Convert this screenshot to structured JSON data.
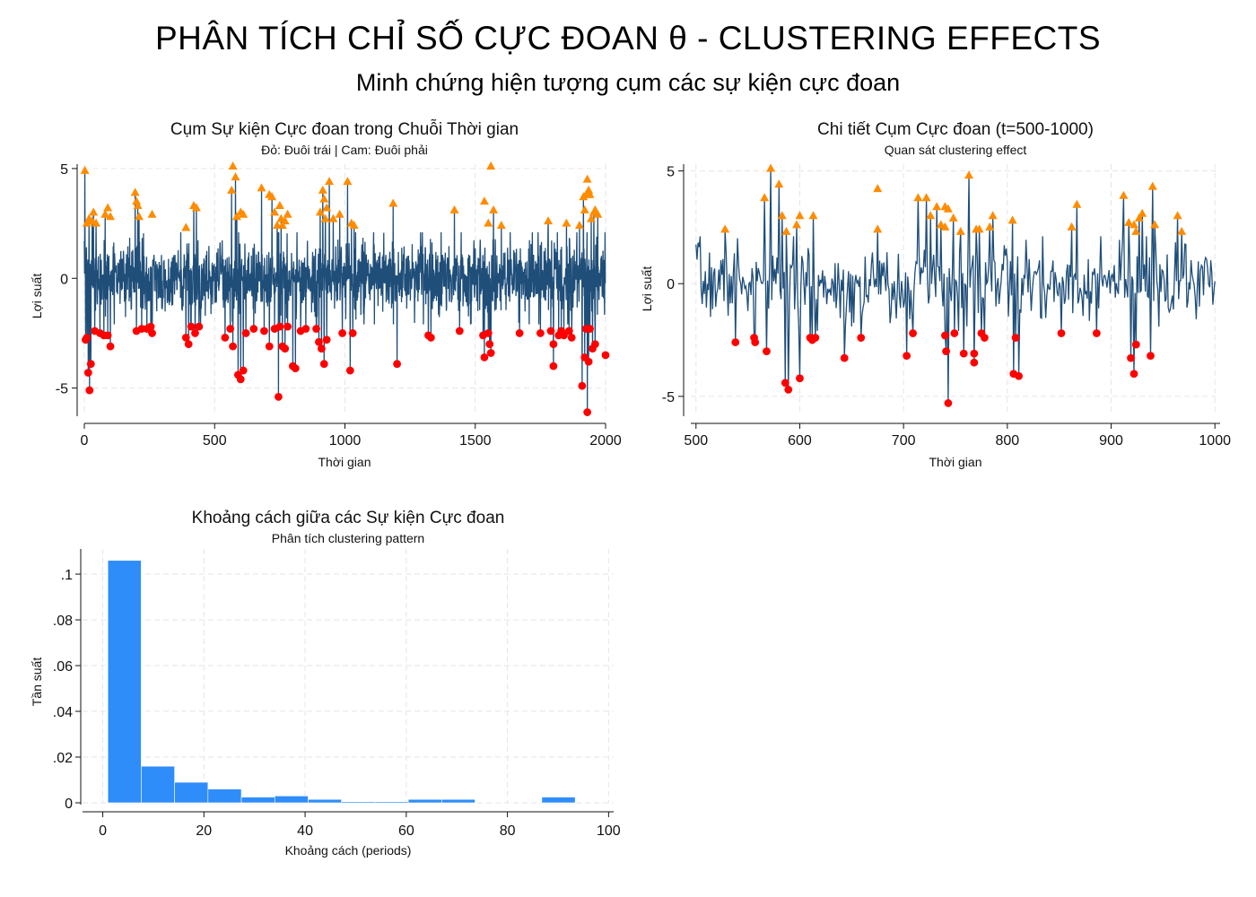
{
  "title": "PHÂN TÍCH CHỈ SỐ CỰC ĐOAN θ - CLUSTERING EFFECTS",
  "subtitle": "Minh chứng hiện tượng cụm các sự kiện cực đoan",
  "colors": {
    "line": "#1f4e79",
    "right_tail": "#ff8c00",
    "left_tail": "#ff0000",
    "bar": "#2f8dfa"
  },
  "chart_data": [
    {
      "id": "ts-full",
      "type": "line",
      "title": "Cụm Sự kiện Cực đoan trong Chuỗi Thời gian",
      "subtitle": "Đỏ: Đuôi trái | Cam: Đuôi phải",
      "xlabel": "Thời gian",
      "ylabel": "Lợi suất",
      "xlim": [
        0,
        2000
      ],
      "ylim": [
        -6.2,
        5.2
      ],
      "xticks": [
        0,
        500,
        1000,
        1500,
        2000
      ],
      "yticks": [
        -5,
        0,
        5
      ],
      "ytick_labels": [
        "-5",
        "0",
        "5"
      ],
      "grid": true,
      "series": [
        {
          "name": "",
          "marker": "line",
          "x_start": 0,
          "x_step": 1,
          "n": 2000,
          "note_values": "Return path with extreme events: exact per-point values not legible; line rendered from approx. reconstructed path"
        },
        {
          "name": "Cam: Đuôi phải",
          "marker": "triangle",
          "points": [
            [
              2,
              4.9
            ],
            [
              10,
              2.5
            ],
            [
              18,
              2.7
            ],
            [
              30,
              2.6
            ],
            [
              35,
              3.0
            ],
            [
              45,
              2.5
            ],
            [
              80,
              2.9
            ],
            [
              90,
              3.2
            ],
            [
              100,
              2.8
            ],
            [
              195,
              3.9
            ],
            [
              200,
              3.5
            ],
            [
              205,
              3.3
            ],
            [
              210,
              2.8
            ],
            [
              260,
              2.9
            ],
            [
              390,
              2.3
            ],
            [
              420,
              3.3
            ],
            [
              430,
              3.2
            ],
            [
              565,
              4.0
            ],
            [
              570,
              5.1
            ],
            [
              580,
              4.6
            ],
            [
              585,
              2.8
            ],
            [
              600,
              3.0
            ],
            [
              610,
              2.9
            ],
            [
              680,
              4.1
            ],
            [
              710,
              3.8
            ],
            [
              720,
              3.7
            ],
            [
              730,
              3.0
            ],
            [
              740,
              2.4
            ],
            [
              750,
              3.3
            ],
            [
              755,
              2.7
            ],
            [
              760,
              2.4
            ],
            [
              770,
              2.6
            ],
            [
              780,
              2.9
            ],
            [
              905,
              3.0
            ],
            [
              915,
              4.0
            ],
            [
              920,
              3.6
            ],
            [
              925,
              2.7
            ],
            [
              930,
              3.2
            ],
            [
              940,
              4.4
            ],
            [
              955,
              2.7
            ],
            [
              980,
              2.9
            ],
            [
              1010,
              4.4
            ],
            [
              1025,
              2.5
            ],
            [
              1035,
              2.4
            ],
            [
              1185,
              3.4
            ],
            [
              1420,
              3.1
            ],
            [
              1535,
              3.5
            ],
            [
              1550,
              2.5
            ],
            [
              1560,
              5.1
            ],
            [
              1570,
              3.1
            ],
            [
              1600,
              2.4
            ],
            [
              1780,
              2.6
            ],
            [
              1850,
              2.5
            ],
            [
              1900,
              2.4
            ],
            [
              1915,
              3.7
            ],
            [
              1920,
              3.1
            ],
            [
              1925,
              3.8
            ],
            [
              1930,
              4.5
            ],
            [
              1935,
              4.0
            ],
            [
              1940,
              3.8
            ],
            [
              1945,
              2.7
            ],
            [
              1955,
              3.0
            ],
            [
              1960,
              3.1
            ],
            [
              1970,
              2.9
            ]
          ]
        },
        {
          "name": "Đỏ: Đuôi trái",
          "marker": "circle",
          "points": [
            [
              5,
              -2.8
            ],
            [
              10,
              -2.7
            ],
            [
              15,
              -4.3
            ],
            [
              20,
              -5.1
            ],
            [
              25,
              -3.9
            ],
            [
              40,
              -2.4
            ],
            [
              60,
              -2.5
            ],
            [
              75,
              -2.6
            ],
            [
              90,
              -2.6
            ],
            [
              100,
              -3.1
            ],
            [
              200,
              -2.4
            ],
            [
              220,
              -2.3
            ],
            [
              240,
              -2.3
            ],
            [
              255,
              -2.2
            ],
            [
              260,
              -2.5
            ],
            [
              390,
              -2.7
            ],
            [
              400,
              -3.0
            ],
            [
              410,
              -2.2
            ],
            [
              425,
              -2.5
            ],
            [
              440,
              -2.2
            ],
            [
              540,
              -2.7
            ],
            [
              560,
              -2.3
            ],
            [
              570,
              -3.1
            ],
            [
              590,
              -4.4
            ],
            [
              600,
              -4.6
            ],
            [
              610,
              -4.2
            ],
            [
              620,
              -2.5
            ],
            [
              650,
              -2.3
            ],
            [
              690,
              -2.4
            ],
            [
              710,
              -3.1
            ],
            [
              730,
              -2.3
            ],
            [
              745,
              -5.4
            ],
            [
              750,
              -2.2
            ],
            [
              760,
              -3.1
            ],
            [
              770,
              -3.2
            ],
            [
              780,
              -2.2
            ],
            [
              800,
              -4.0
            ],
            [
              810,
              -4.1
            ],
            [
              830,
              -2.4
            ],
            [
              850,
              -2.3
            ],
            [
              890,
              -2.3
            ],
            [
              900,
              -2.9
            ],
            [
              910,
              -3.2
            ],
            [
              920,
              -3.9
            ],
            [
              930,
              -2.8
            ],
            [
              990,
              -2.5
            ],
            [
              1020,
              -4.2
            ],
            [
              1030,
              -2.5
            ],
            [
              1200,
              -3.9
            ],
            [
              1320,
              -2.6
            ],
            [
              1330,
              -2.7
            ],
            [
              1440,
              -2.4
            ],
            [
              1530,
              -2.6
            ],
            [
              1535,
              -3.6
            ],
            [
              1550,
              -2.5
            ],
            [
              1555,
              -3.0
            ],
            [
              1560,
              -3.4
            ],
            [
              1670,
              -2.5
            ],
            [
              1750,
              -2.5
            ],
            [
              1790,
              -2.4
            ],
            [
              1800,
              -3.0
            ],
            [
              1800,
              -4.0
            ],
            [
              1820,
              -2.6
            ],
            [
              1830,
              -2.4
            ],
            [
              1840,
              -2.6
            ],
            [
              1860,
              -2.4
            ],
            [
              1870,
              -2.7
            ],
            [
              1910,
              -4.9
            ],
            [
              1920,
              -3.6
            ],
            [
              1925,
              -2.3
            ],
            [
              1930,
              -6.1
            ],
            [
              1935,
              -3.8
            ],
            [
              1940,
              -2.3
            ],
            [
              1950,
              -3.2
            ],
            [
              1960,
              -3.0
            ],
            [
              2000,
              -3.5
            ]
          ]
        }
      ]
    },
    {
      "id": "ts-zoom",
      "type": "line",
      "title": "Chi tiết Cụm Cực đoan (t=500-1000)",
      "subtitle": "Quan sát clustering effect",
      "xlabel": "Thời gian",
      "ylabel": "Lợi suất",
      "xlim": [
        495,
        1005
      ],
      "ylim": [
        -5.8,
        5.3
      ],
      "xticks": [
        500,
        600,
        700,
        800,
        900,
        1000
      ],
      "yticks": [
        -5,
        0,
        5
      ],
      "ytick_labels": [
        "-5",
        "0",
        "5"
      ],
      "grid": true,
      "series": [
        {
          "name": "",
          "marker": "line",
          "x_start": 500,
          "x_step": 1,
          "n": 501,
          "note_values": "Zoomed segment of the same path; per-point values not legible"
        },
        {
          "name": "Cam: Đuôi phải",
          "marker": "triangle",
          "points": [
            [
              528,
              2.4
            ],
            [
              566,
              3.8
            ],
            [
              572,
              5.1
            ],
            [
              580,
              4.4
            ],
            [
              583,
              3.0
            ],
            [
              587,
              2.3
            ],
            [
              597,
              2.6
            ],
            [
              600,
              3.0
            ],
            [
              613,
              3.0
            ],
            [
              675,
              4.2
            ],
            [
              675,
              2.4
            ],
            [
              714,
              3.8
            ],
            [
              722,
              3.8
            ],
            [
              726,
              3.0
            ],
            [
              732,
              3.4
            ],
            [
              736,
              2.6
            ],
            [
              740,
              3.4
            ],
            [
              740,
              2.5
            ],
            [
              743,
              3.3
            ],
            [
              748,
              2.9
            ],
            [
              755,
              2.3
            ],
            [
              763,
              4.8
            ],
            [
              770,
              2.4
            ],
            [
              773,
              2.4
            ],
            [
              783,
              2.5
            ],
            [
              786,
              3.0
            ],
            [
              805,
              2.8
            ],
            [
              862,
              2.5
            ],
            [
              867,
              3.5
            ],
            [
              912,
              3.9
            ],
            [
              917,
              2.7
            ],
            [
              922,
              2.6
            ],
            [
              924,
              2.3
            ],
            [
              927,
              2.9
            ],
            [
              930,
              3.1
            ],
            [
              940,
              4.3
            ],
            [
              942,
              2.6
            ],
            [
              964,
              3.0
            ],
            [
              968,
              2.3
            ]
          ]
        },
        {
          "name": "Đỏ: Đuôi trái",
          "marker": "circle",
          "points": [
            [
              538,
              -2.6
            ],
            [
              556,
              -2.4
            ],
            [
              557,
              -2.6
            ],
            [
              568,
              -3.0
            ],
            [
              586,
              -4.4
            ],
            [
              589,
              -4.7
            ],
            [
              600,
              -4.2
            ],
            [
              610,
              -2.4
            ],
            [
              612,
              -2.5
            ],
            [
              615,
              -2.4
            ],
            [
              643,
              -3.3
            ],
            [
              659,
              -2.4
            ],
            [
              703,
              -3.2
            ],
            [
              709,
              -2.2
            ],
            [
              740,
              -2.3
            ],
            [
              741,
              -3.0
            ],
            [
              743,
              -5.3
            ],
            [
              749,
              -2.2
            ],
            [
              758,
              -3.1
            ],
            [
              768,
              -3.1
            ],
            [
              768,
              -3.5
            ],
            [
              775,
              -2.2
            ],
            [
              778,
              -2.4
            ],
            [
              806,
              -4.0
            ],
            [
              808,
              -2.4
            ],
            [
              811,
              -4.1
            ],
            [
              852,
              -2.2
            ],
            [
              886,
              -2.2
            ],
            [
              919,
              -3.3
            ],
            [
              922,
              -4.0
            ],
            [
              924,
              -2.7
            ],
            [
              938,
              -3.2
            ]
          ]
        }
      ]
    },
    {
      "id": "hist-gaps",
      "type": "bar",
      "title": "Khoảng cách giữa các Sự kiện Cực đoan",
      "subtitle": "Phân tích clustering pattern",
      "xlabel": "Khoảng cách (periods)",
      "ylabel": "Tần suất",
      "xlim": [
        -4,
        101
      ],
      "ylim": [
        0,
        0.111
      ],
      "xticks": [
        0,
        20,
        40,
        60,
        80,
        100
      ],
      "yticks": [
        0,
        0.02,
        0.04,
        0.06,
        0.08,
        0.1
      ],
      "ytick_labels": [
        "0",
        ".02",
        ".04",
        ".06",
        ".08",
        ".1"
      ],
      "grid": true,
      "bin_edges": [
        1,
        7.6,
        14.2,
        20.8,
        27.4,
        34,
        40.6,
        47.2,
        53.8,
        60.4,
        67,
        73.6,
        80.2,
        86.8,
        93.4
      ],
      "values": [
        0.106,
        0.016,
        0.009,
        0.006,
        0.0025,
        0.003,
        0.0015,
        0.0005,
        0.0005,
        0.0015,
        0.0015,
        0,
        0,
        0.0025
      ]
    }
  ]
}
